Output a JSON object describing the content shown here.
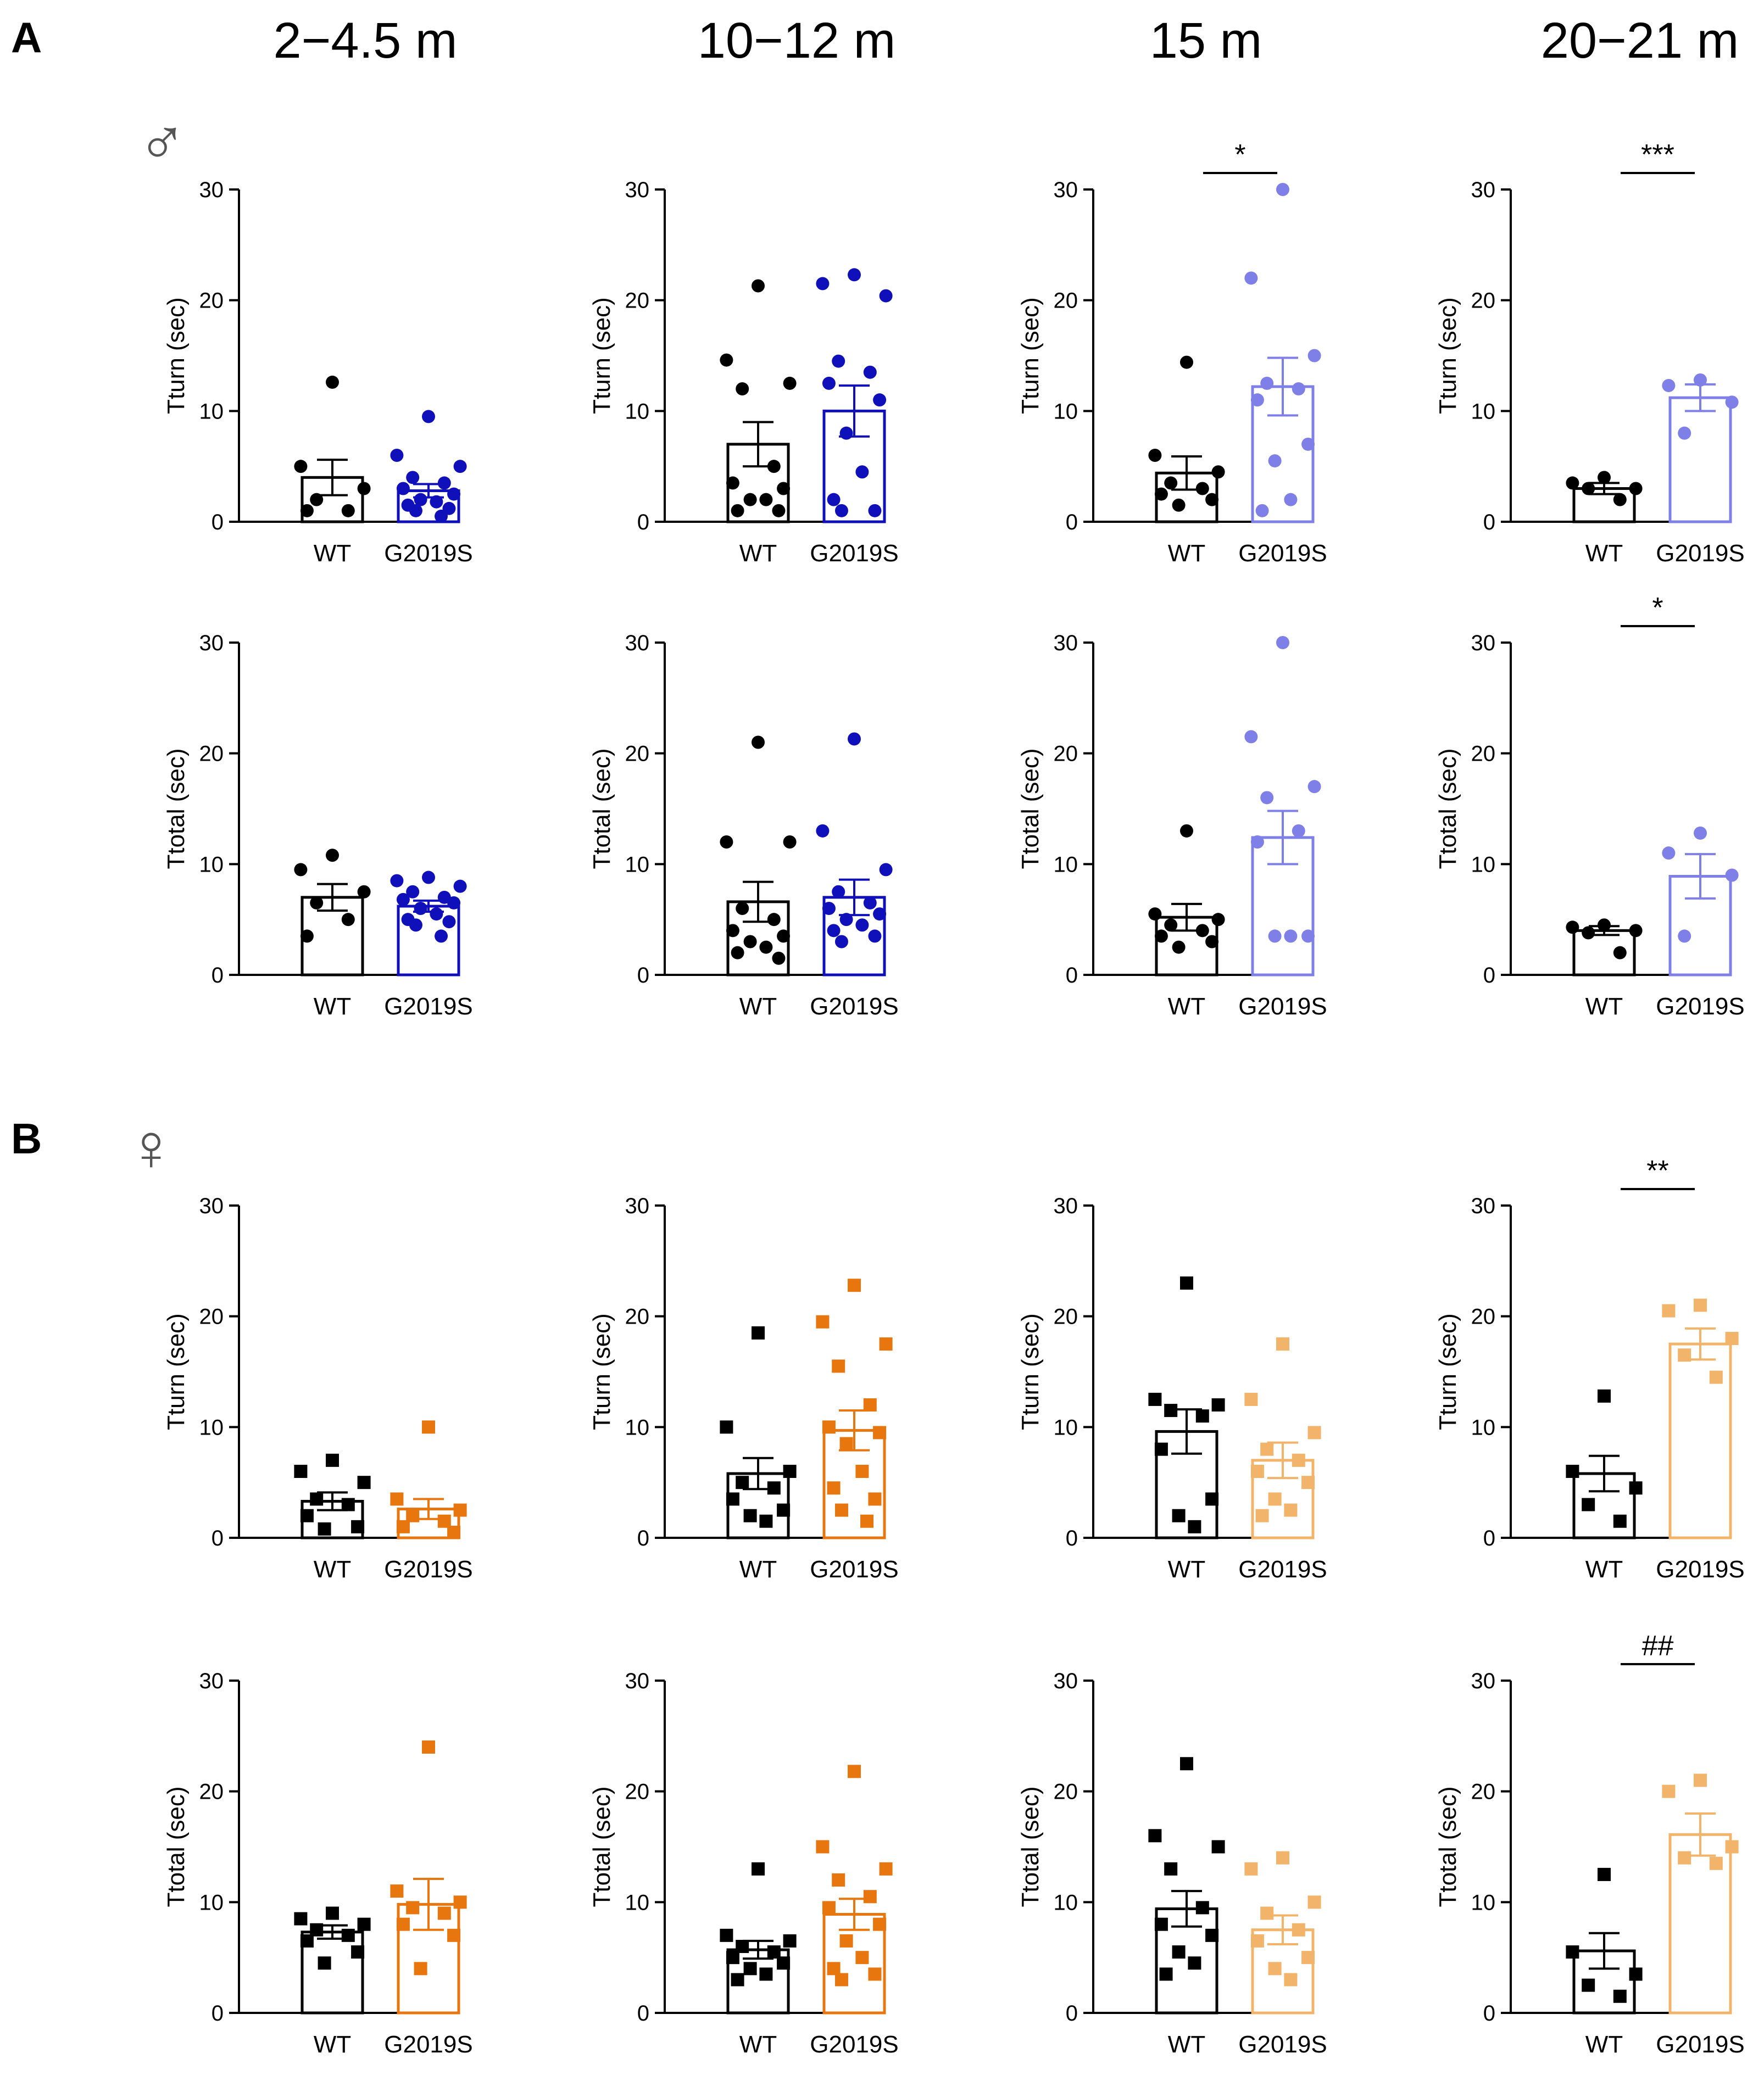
{
  "figure": {
    "panel_labels": [
      "A",
      "B"
    ],
    "sex_symbols": [
      "♂",
      "♀"
    ],
    "age_headers": [
      "2−4.5 m",
      "10−12 m",
      "15 m",
      "20−21 m"
    ]
  },
  "colors": {
    "wt": "#000000",
    "male_young": "#1010bb",
    "male_old": "#7f7fe8",
    "female_young": "#e8760f",
    "female_old": "#f2b46a"
  },
  "chart_data": [
    {
      "type": "bar",
      "panel": "A",
      "sex": "male",
      "age": "2−4.5 m",
      "ylabel": "Tturn (sec)",
      "ylim": [
        0,
        30
      ],
      "yticks": [
        0,
        10,
        20,
        30
      ],
      "categories": [
        "WT",
        "G2019S"
      ],
      "means": [
        4.0,
        2.8
      ],
      "sem": [
        1.6,
        0.6
      ],
      "marker": "circle",
      "color_key": "male_young",
      "points": [
        [
          12.6,
          5.0,
          3.0,
          2.0,
          1.0,
          1.0
        ],
        [
          9.5,
          6.0,
          5.0,
          4.0,
          3.5,
          3.0,
          2.5,
          2.0,
          1.8,
          1.5,
          1.2,
          1.0,
          0.5
        ]
      ],
      "significance": ""
    },
    {
      "type": "bar",
      "panel": "A",
      "sex": "male",
      "age": "10−12 m",
      "ylabel": "Tturn (sec)",
      "ylim": [
        0,
        30
      ],
      "yticks": [
        0,
        10,
        20,
        30
      ],
      "categories": [
        "WT",
        "G2019S"
      ],
      "means": [
        7.0,
        10.0
      ],
      "sem": [
        2.0,
        2.3
      ],
      "marker": "circle",
      "color_key": "male_young",
      "points": [
        [
          21.3,
          14.6,
          12.5,
          12.0,
          5.0,
          3.5,
          3.0,
          2.0,
          2.0,
          1.0,
          1.0
        ],
        [
          22.3,
          21.5,
          20.4,
          14.5,
          13.5,
          12.5,
          11.0,
          8.0,
          4.5,
          2.0,
          1.0,
          1.0
        ]
      ],
      "significance": ""
    },
    {
      "type": "bar",
      "panel": "A",
      "sex": "male",
      "age": "15 m",
      "ylabel": "Tturn (sec)",
      "ylim": [
        0,
        30
      ],
      "yticks": [
        0,
        10,
        20,
        30
      ],
      "categories": [
        "WT",
        "G2019S"
      ],
      "means": [
        4.4,
        12.2
      ],
      "sem": [
        1.5,
        2.6
      ],
      "marker": "circle",
      "color_key": "male_old",
      "points": [
        [
          14.4,
          6.0,
          4.5,
          3.5,
          3.0,
          2.5,
          2.0,
          1.5
        ],
        [
          30.0,
          22.0,
          15.0,
          12.5,
          12.0,
          11.0,
          7.0,
          5.5,
          2.0,
          1.0
        ]
      ],
      "significance": "*"
    },
    {
      "type": "bar",
      "panel": "A",
      "sex": "male",
      "age": "20−21 m",
      "ylabel": "Tturn (sec)",
      "ylim": [
        0,
        30
      ],
      "yticks": [
        0,
        10,
        20,
        30
      ],
      "categories": [
        "WT",
        "G2019S"
      ],
      "means": [
        3.0,
        11.2
      ],
      "sem": [
        0.5,
        1.2
      ],
      "marker": "circle",
      "color_key": "male_old",
      "points": [
        [
          4.0,
          3.5,
          3.0,
          3.0,
          2.0
        ],
        [
          12.8,
          12.3,
          10.8,
          8.0
        ]
      ],
      "significance": "***"
    },
    {
      "type": "bar",
      "panel": "A",
      "sex": "male",
      "age": "2−4.5 m",
      "ylabel": "Ttotal (sec)",
      "ylim": [
        0,
        30
      ],
      "yticks": [
        0,
        10,
        20,
        30
      ],
      "categories": [
        "WT",
        "G2019S"
      ],
      "means": [
        7.0,
        6.2
      ],
      "sem": [
        1.2,
        0.5
      ],
      "marker": "circle",
      "color_key": "male_young",
      "points": [
        [
          10.8,
          9.5,
          7.5,
          6.5,
          5.0,
          3.5
        ],
        [
          8.8,
          8.5,
          8.0,
          7.5,
          7.0,
          6.8,
          6.5,
          6.0,
          5.5,
          5.0,
          4.8,
          4.5,
          3.5
        ]
      ],
      "significance": ""
    },
    {
      "type": "bar",
      "panel": "A",
      "sex": "male",
      "age": "10−12 m",
      "ylabel": "Ttotal (sec)",
      "ylim": [
        0,
        30
      ],
      "yticks": [
        0,
        10,
        20,
        30
      ],
      "categories": [
        "WT",
        "G2019S"
      ],
      "means": [
        6.6,
        7.0
      ],
      "sem": [
        1.8,
        1.6
      ],
      "marker": "circle",
      "color_key": "male_young",
      "points": [
        [
          21.0,
          12.0,
          12.0,
          6.0,
          5.0,
          4.0,
          3.5,
          3.0,
          2.5,
          2.0,
          1.5
        ],
        [
          21.3,
          13.0,
          9.5,
          7.5,
          6.5,
          6.0,
          5.5,
          5.0,
          4.5,
          4.0,
          3.5,
          3.0
        ]
      ],
      "significance": ""
    },
    {
      "type": "bar",
      "panel": "A",
      "sex": "male",
      "age": "15 m",
      "ylabel": "Ttotal (sec)",
      "ylim": [
        0,
        30
      ],
      "yticks": [
        0,
        10,
        20,
        30
      ],
      "categories": [
        "WT",
        "G2019S"
      ],
      "means": [
        5.2,
        12.4
      ],
      "sem": [
        1.2,
        2.4
      ],
      "marker": "circle",
      "color_key": "male_old",
      "points": [
        [
          13.0,
          5.5,
          5.0,
          4.5,
          4.0,
          3.5,
          3.0,
          2.5
        ],
        [
          30.0,
          21.5,
          17.0,
          16.0,
          13.0,
          12.0,
          3.5,
          3.5,
          3.5
        ]
      ],
      "significance": ""
    },
    {
      "type": "bar",
      "panel": "A",
      "sex": "male",
      "age": "20−21 m",
      "ylabel": "Ttotal (sec)",
      "ylim": [
        0,
        30
      ],
      "yticks": [
        0,
        10,
        20,
        30
      ],
      "categories": [
        "WT",
        "G2019S"
      ],
      "means": [
        4.0,
        8.9
      ],
      "sem": [
        0.4,
        2.0
      ],
      "marker": "circle",
      "color_key": "male_old",
      "points": [
        [
          4.5,
          4.3,
          4.0,
          3.8,
          2.0
        ],
        [
          12.8,
          11.0,
          9.0,
          3.5
        ]
      ],
      "significance": "*"
    },
    {
      "type": "bar",
      "panel": "B",
      "sex": "female",
      "age": "2−4.5 m",
      "ylabel": "Tturn (sec)",
      "ylim": [
        0,
        30
      ],
      "yticks": [
        0,
        10,
        20,
        30
      ],
      "categories": [
        "WT",
        "G2019S"
      ],
      "means": [
        3.3,
        2.6
      ],
      "sem": [
        0.8,
        0.9
      ],
      "marker": "square",
      "color_key": "female_young",
      "points": [
        [
          7.0,
          6.0,
          5.0,
          3.5,
          3.0,
          2.0,
          1.0,
          0.8
        ],
        [
          10.0,
          3.5,
          2.5,
          2.0,
          1.5,
          1.0,
          0.5
        ]
      ],
      "significance": ""
    },
    {
      "type": "bar",
      "panel": "B",
      "sex": "female",
      "age": "10−12 m",
      "ylabel": "Tturn (sec)",
      "ylim": [
        0,
        30
      ],
      "yticks": [
        0,
        10,
        20,
        30
      ],
      "categories": [
        "WT",
        "G2019S"
      ],
      "means": [
        5.8,
        9.7
      ],
      "sem": [
        1.4,
        1.8
      ],
      "marker": "square",
      "color_key": "female_young",
      "points": [
        [
          18.5,
          10.0,
          6.0,
          5.0,
          4.5,
          3.5,
          2.5,
          2.0,
          1.5
        ],
        [
          22.8,
          19.5,
          17.5,
          15.5,
          12.0,
          10.0,
          9.5,
          8.5,
          6.0,
          4.5,
          3.5,
          2.5,
          1.5
        ]
      ],
      "significance": ""
    },
    {
      "type": "bar",
      "panel": "B",
      "sex": "female",
      "age": "15 m",
      "ylabel": "Tturn (sec)",
      "ylim": [
        0,
        30
      ],
      "yticks": [
        0,
        10,
        20,
        30
      ],
      "categories": [
        "WT",
        "G2019S"
      ],
      "means": [
        9.6,
        7.0
      ],
      "sem": [
        2.0,
        1.6
      ],
      "marker": "square",
      "color_key": "female_old",
      "points": [
        [
          23.0,
          12.5,
          12.0,
          11.5,
          11.0,
          8.0,
          3.5,
          2.0,
          1.0
        ],
        [
          17.5,
          12.5,
          9.5,
          8.0,
          7.0,
          6.0,
          5.0,
          3.5,
          2.5,
          2.0
        ]
      ],
      "significance": ""
    },
    {
      "type": "bar",
      "panel": "B",
      "sex": "female",
      "age": "20−21 m",
      "ylabel": "Tturn (sec)",
      "ylim": [
        0,
        30
      ],
      "yticks": [
        0,
        10,
        20,
        30
      ],
      "categories": [
        "WT",
        "G2019S"
      ],
      "means": [
        5.8,
        17.5
      ],
      "sem": [
        1.6,
        1.4
      ],
      "marker": "square",
      "color_key": "female_old",
      "points": [
        [
          12.8,
          6.0,
          4.5,
          3.0,
          1.5
        ],
        [
          21.0,
          20.5,
          18.0,
          16.5,
          14.5
        ]
      ],
      "significance": "**"
    },
    {
      "type": "bar",
      "panel": "B",
      "sex": "female",
      "age": "2−4.5 m",
      "ylabel": "Ttotal (sec)",
      "ylim": [
        0,
        30
      ],
      "yticks": [
        0,
        10,
        20,
        30
      ],
      "categories": [
        "WT",
        "G2019S"
      ],
      "means": [
        7.3,
        9.8
      ],
      "sem": [
        0.6,
        2.3
      ],
      "marker": "square",
      "color_key": "female_young",
      "points": [
        [
          9.0,
          8.5,
          8.0,
          7.5,
          7.0,
          6.5,
          5.5,
          4.5
        ],
        [
          24.0,
          11.0,
          10.0,
          9.5,
          9.0,
          8.0,
          7.0,
          4.0
        ]
      ],
      "significance": ""
    },
    {
      "type": "bar",
      "panel": "B",
      "sex": "female",
      "age": "10−12 m",
      "ylabel": "Ttotal (sec)",
      "ylim": [
        0,
        30
      ],
      "yticks": [
        0,
        10,
        20,
        30
      ],
      "categories": [
        "WT",
        "G2019S"
      ],
      "means": [
        5.7,
        8.9
      ],
      "sem": [
        0.8,
        1.4
      ],
      "marker": "square",
      "color_key": "female_young",
      "points": [
        [
          13.0,
          7.0,
          6.5,
          6.0,
          5.5,
          5.0,
          4.5,
          4.0,
          3.5,
          3.0
        ],
        [
          21.8,
          15.0,
          13.0,
          12.0,
          10.5,
          9.5,
          8.0,
          6.5,
          5.0,
          4.0,
          3.5,
          3.0
        ]
      ],
      "significance": ""
    },
    {
      "type": "bar",
      "panel": "B",
      "sex": "female",
      "age": "15 m",
      "ylabel": "Ttotal (sec)",
      "ylim": [
        0,
        30
      ],
      "yticks": [
        0,
        10,
        20,
        30
      ],
      "categories": [
        "WT",
        "G2019S"
      ],
      "means": [
        9.4,
        7.5
      ],
      "sem": [
        1.6,
        1.3
      ],
      "marker": "square",
      "color_key": "female_old",
      "points": [
        [
          22.5,
          16.0,
          15.0,
          13.0,
          9.5,
          8.0,
          7.0,
          5.5,
          4.5,
          3.5
        ],
        [
          14.0,
          13.0,
          10.0,
          9.0,
          7.5,
          6.5,
          5.0,
          4.0,
          3.0
        ]
      ],
      "significance": ""
    },
    {
      "type": "bar",
      "panel": "B",
      "sex": "female",
      "age": "20−21 m",
      "ylabel": "Ttotal (sec)",
      "ylim": [
        0,
        30
      ],
      "yticks": [
        0,
        10,
        20,
        30
      ],
      "categories": [
        "WT",
        "G2019S"
      ],
      "means": [
        5.6,
        16.1
      ],
      "sem": [
        1.6,
        1.9
      ],
      "marker": "square",
      "color_key": "female_old",
      "points": [
        [
          12.5,
          5.5,
          3.5,
          2.5,
          1.5
        ],
        [
          21.0,
          20.0,
          15.0,
          14.0,
          13.5
        ]
      ],
      "significance": "##"
    }
  ]
}
